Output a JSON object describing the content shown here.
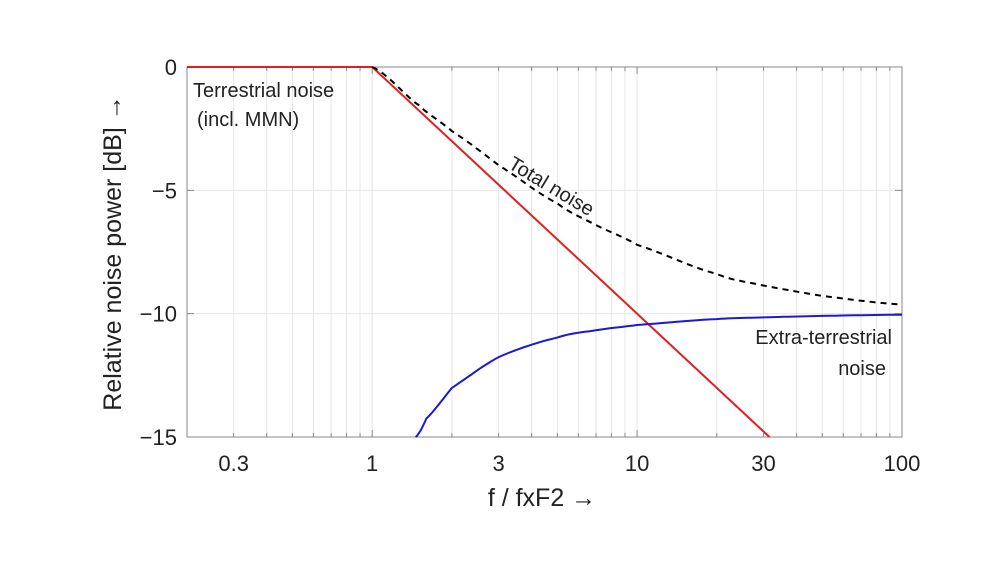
{
  "chart_data": {
    "type": "line",
    "title": "",
    "xlabel": "f / fxF2 →",
    "ylabel": "Relative noise power [dB] →",
    "xscale": "log",
    "xlim": [
      0.2,
      100
    ],
    "ylim": [
      -15,
      0
    ],
    "grid": true,
    "xticks": [
      0.3,
      1,
      3,
      10,
      30,
      100
    ],
    "xtick_labels": [
      "0.3",
      "1",
      "3",
      "10",
      "30",
      "100"
    ],
    "yticks": [
      0,
      -5,
      -10,
      -15
    ],
    "ytick_labels": [
      "0",
      "−5",
      "−10",
      "−15"
    ],
    "series": [
      {
        "label": "Terrestrial noise (incl. MMN)",
        "color": "#e02020",
        "style": "solid",
        "x": [
          0.2,
          1,
          31.6
        ],
        "y": [
          0,
          0,
          -15
        ]
      },
      {
        "label": "Extra-terrestrial noise",
        "color": "#1a1ad0",
        "style": "solid",
        "x": [
          1.46,
          1.6,
          2,
          3,
          5,
          7,
          10,
          20,
          30,
          50,
          100
        ],
        "y": [
          -15.0,
          -14.26,
          -13.01,
          -11.76,
          -10.97,
          -10.67,
          -10.46,
          -10.22,
          -10.15,
          -10.09,
          -10.04
        ]
      },
      {
        "label": "Total noise",
        "color": "#000000",
        "style": "dashed",
        "x": [
          1,
          1.5,
          2,
          3,
          5,
          7,
          10,
          20,
          30,
          50,
          100
        ],
        "y": [
          0,
          -1.55,
          -2.6,
          -3.98,
          -5.53,
          -6.41,
          -7.21,
          -8.39,
          -8.86,
          -9.28,
          -9.63
        ]
      }
    ],
    "annotations": {
      "terrestrial_line1": "Terrestrial noise",
      "terrestrial_line2": "(incl. MMN)",
      "total": "Total noise",
      "extra_line1": "Extra-terrestrial",
      "extra_line2": "noise"
    }
  }
}
